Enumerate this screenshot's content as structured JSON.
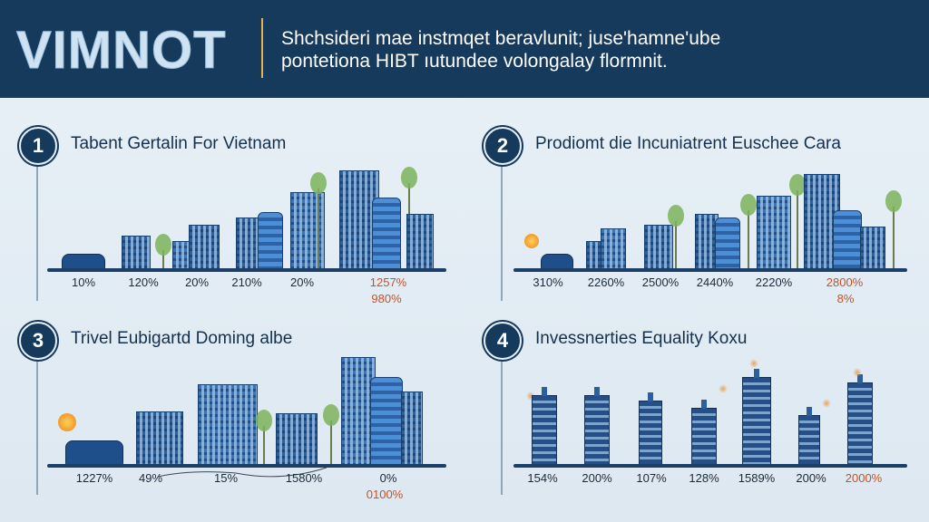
{
  "header": {
    "logo": "VIMNOT",
    "tagline_line1": "Shchsideri mae instmqet beravlunit; juse'hamne'ube",
    "tagline_line2": "pontetiona HIBT ıutundee volongalay flormnit."
  },
  "sections": [
    {
      "number": "1",
      "title": "Tabent Gertalin For Vietnam",
      "labels": [
        "10%",
        "120%",
        "20%",
        "210%",
        "20%",
        "1257%"
      ],
      "extra_label": "980%"
    },
    {
      "number": "2",
      "title": "Prodiomt die Incuniatrent Euschee Cara",
      "labels": [
        "310%",
        "2260%",
        "2500%",
        "2440%",
        "2220%",
        "2800%"
      ],
      "extra_label": "8%"
    },
    {
      "number": "3",
      "title": "Trivel Eubigartd Doming albe",
      "labels": [
        "1227%",
        "49%",
        "15%",
        "1580%",
        "0%"
      ],
      "extra_label": "0100%"
    },
    {
      "number": "4",
      "title": "Invessnerties Equality Koxu",
      "labels": [
        "154%",
        "200%",
        "107%",
        "128%",
        "1589%",
        "200%",
        "2000%"
      ]
    }
  ],
  "colors": {
    "header_bg": "#163a5c",
    "accent": "#e8b04a",
    "building": "#2d5f9b",
    "highlight_label": "#c2532a"
  }
}
